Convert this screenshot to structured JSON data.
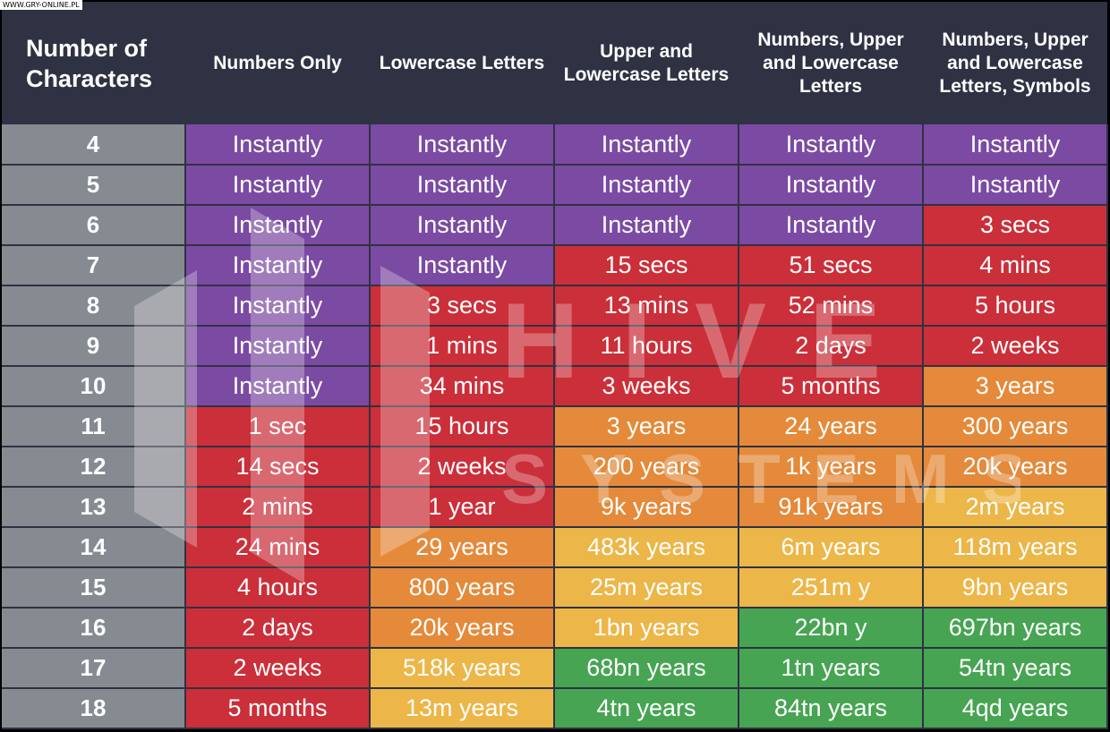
{
  "site_watermark": "WWW.GRY-ONLINE.PL",
  "logo": {
    "line1": "HIVE",
    "line2": "SYSTEMS"
  },
  "colors": {
    "header_bg": "#2f3242",
    "length_col_bg": "#868a91",
    "Instantly": "#7b4aa3",
    "red": "#cb2f39",
    "orange": "#e48a3a",
    "yellow": "#ecb648",
    "green": "#47a453"
  },
  "chart_data": {
    "type": "table",
    "columns": [
      "Number of Characters",
      "Numbers Only",
      "Lowercase Letters",
      "Upper and Lowercase Letters",
      "Numbers, Upper and Lowercase Letters",
      "Numbers, Upper and Lowercase Letters, Symbols"
    ],
    "rows": [
      {
        "length": "4",
        "values": [
          "Instantly",
          "Instantly",
          "Instantly",
          "Instantly",
          "Instantly"
        ],
        "colors": [
          "purple",
          "purple",
          "purple",
          "purple",
          "purple"
        ]
      },
      {
        "length": "5",
        "values": [
          "Instantly",
          "Instantly",
          "Instantly",
          "Instantly",
          "Instantly"
        ],
        "colors": [
          "purple",
          "purple",
          "purple",
          "purple",
          "purple"
        ]
      },
      {
        "length": "6",
        "values": [
          "Instantly",
          "Instantly",
          "Instantly",
          "Instantly",
          "3 secs"
        ],
        "colors": [
          "purple",
          "purple",
          "purple",
          "purple",
          "red"
        ]
      },
      {
        "length": "7",
        "values": [
          "Instantly",
          "Instantly",
          "15 secs",
          "51 secs",
          "4 mins"
        ],
        "colors": [
          "purple",
          "purple",
          "red",
          "red",
          "red"
        ]
      },
      {
        "length": "8",
        "values": [
          "Instantly",
          "3 secs",
          "13 mins",
          "52 mins",
          "5 hours"
        ],
        "colors": [
          "purple",
          "red",
          "red",
          "red",
          "red"
        ]
      },
      {
        "length": "9",
        "values": [
          "Instantly",
          "1 mins",
          "11 hours",
          "2 days",
          "2 weeks"
        ],
        "colors": [
          "purple",
          "red",
          "red",
          "red",
          "red"
        ]
      },
      {
        "length": "10",
        "values": [
          "Instantly",
          "34 mins",
          "3 weeks",
          "5 months",
          "3 years"
        ],
        "colors": [
          "purple",
          "red",
          "red",
          "red",
          "orange"
        ]
      },
      {
        "length": "11",
        "values": [
          "1 sec",
          "15 hours",
          "3 years",
          "24 years",
          "300 years"
        ],
        "colors": [
          "red",
          "red",
          "orange",
          "orange",
          "orange"
        ]
      },
      {
        "length": "12",
        "values": [
          "14 secs",
          "2 weeks",
          "200 years",
          "1k years",
          "20k years"
        ],
        "colors": [
          "red",
          "red",
          "orange",
          "orange",
          "orange"
        ]
      },
      {
        "length": "13",
        "values": [
          "2 mins",
          "1 year",
          "9k years",
          "91k years",
          "2m years"
        ],
        "colors": [
          "red",
          "red",
          "orange",
          "orange",
          "yellow"
        ]
      },
      {
        "length": "14",
        "values": [
          "24 mins",
          "29 years",
          "483k years",
          "6m years",
          "118m years"
        ],
        "colors": [
          "red",
          "orange",
          "yellow",
          "yellow",
          "yellow"
        ]
      },
      {
        "length": "15",
        "values": [
          "4 hours",
          "800 years",
          "25m years",
          "251m y",
          "9bn years"
        ],
        "colors": [
          "red",
          "orange",
          "yellow",
          "yellow",
          "yellow"
        ]
      },
      {
        "length": "16",
        "values": [
          "2 days",
          "20k years",
          "1bn years",
          "22bn y",
          "697bn years"
        ],
        "colors": [
          "red",
          "orange",
          "yellow",
          "green",
          "green"
        ]
      },
      {
        "length": "17",
        "values": [
          "2 weeks",
          "518k years",
          "68bn years",
          "1tn years",
          "54tn years"
        ],
        "colors": [
          "red",
          "yellow",
          "green",
          "green",
          "green"
        ]
      },
      {
        "length": "18",
        "values": [
          "5 months",
          "13m years",
          "4tn years",
          "84tn years",
          "4qd years"
        ],
        "colors": [
          "red",
          "yellow",
          "green",
          "green",
          "green"
        ]
      }
    ]
  }
}
